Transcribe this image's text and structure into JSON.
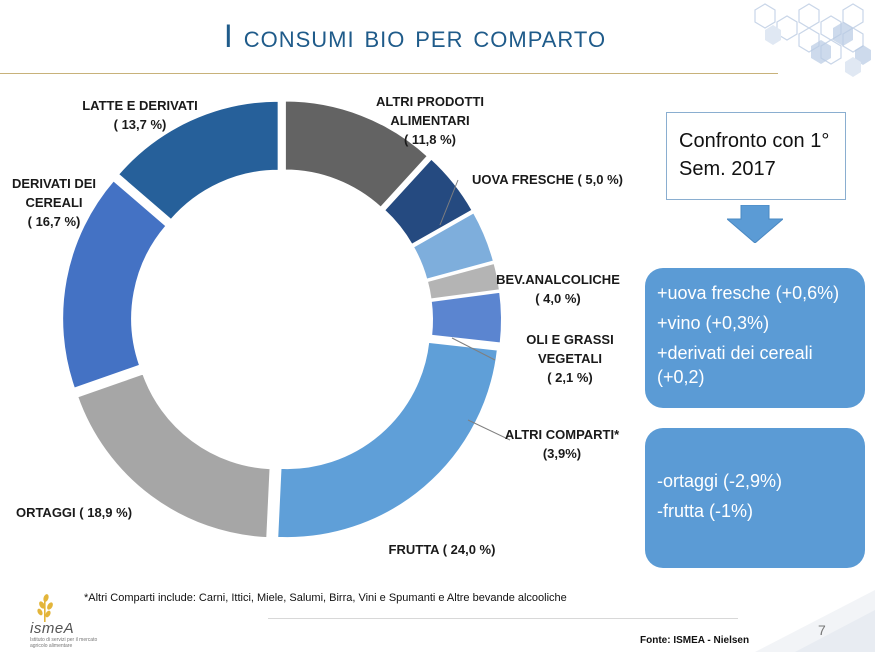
{
  "slide": {
    "title": "I consumi bio per comparto",
    "page_number": "7",
    "source": "Fonte: ISMEA - Nielsen",
    "footnote": "*Altri Comparti include: Carni, Ittici, Miele, Salumi, Birra, Vini e Spumanti e Altre bevande alcooliche",
    "logo_text": "ismeA",
    "logo_subtitle": "Istituto di servizi per il mercato agricolo alimentare"
  },
  "comparison": {
    "box_text": "Confronto con 1° Sem. 2017",
    "increases": [
      "+uova fresche (+0,6%)",
      "+vino (+0,3%)",
      "+derivati dei cereali (+0,2)"
    ],
    "decreases": [
      "-ortaggi (-2,9%)",
      "-frutta (-1%)"
    ]
  },
  "chart_data": {
    "type": "pie",
    "donut": true,
    "slices": [
      {
        "label": "ALTRI PRODOTTI ALIMENTARI",
        "value_label": "( 11,8 %)",
        "value": 11.8,
        "color": "#636363"
      },
      {
        "label": "UOVA FRESCHE",
        "value_label": "( 5,0 %)",
        "value": 5.0,
        "color": "#254a80"
      },
      {
        "label": "BEV.ANALCOLICHE",
        "value_label": "( 4,0 %)",
        "value": 4.0,
        "color": "#7eaedc"
      },
      {
        "label": "OLI E GRASSI VEGETALI",
        "value_label": "( 2,1 %)",
        "value": 2.1,
        "color": "#b4b4b4"
      },
      {
        "label": "ALTRI COMPARTI*",
        "value_label": "(3,9%)",
        "value": 3.9,
        "color": "#5b85d0"
      },
      {
        "label": "FRUTTA",
        "value_label": "( 24,0 %)",
        "value": 24.0,
        "color": "#5f9fd8"
      },
      {
        "label": "ORTAGGI",
        "value_label": "( 18,9 %)",
        "value": 18.9,
        "color": "#a6a6a6"
      },
      {
        "label": "DERIVATI DEI CEREALI",
        "value_label": "( 16,7 %)",
        "value": 16.7,
        "color": "#4472c4"
      },
      {
        "label": "LATTE E DERIVATI",
        "value_label": "( 13,7 %)",
        "value": 13.7,
        "color": "#26609a"
      }
    ]
  }
}
